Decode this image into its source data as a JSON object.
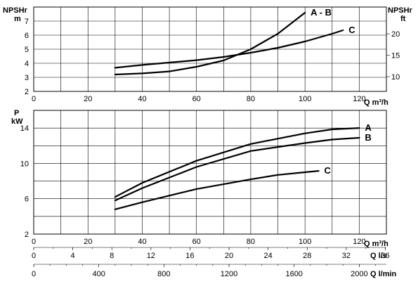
{
  "chart_data": [
    {
      "type": "line",
      "title": "",
      "ylabel_left": [
        "NPSHr",
        "m"
      ],
      "ylabel_right": [
        "NPSHr",
        "ft"
      ],
      "xlabel": "Q m³/h",
      "xlim": [
        0,
        130
      ],
      "ylim": [
        2,
        8
      ],
      "y_ticks_left": [
        2,
        3,
        4,
        5,
        6,
        7
      ],
      "y_ticks_right": [
        10,
        15,
        20
      ],
      "x_ticks": [
        0,
        20,
        40,
        60,
        80,
        100,
        120
      ],
      "grid": true,
      "series": [
        {
          "name": "A - B",
          "x": [
            30,
            40,
            50,
            60,
            70,
            75,
            80,
            90,
            100
          ],
          "y": [
            3.2,
            3.28,
            3.42,
            3.75,
            4.2,
            4.6,
            5.0,
            6.1,
            7.6
          ]
        },
        {
          "name": "C",
          "x": [
            30,
            40,
            50,
            60,
            70,
            80,
            90,
            100,
            110,
            114
          ],
          "y": [
            3.68,
            3.88,
            4.05,
            4.22,
            4.45,
            4.75,
            5.1,
            5.55,
            6.1,
            6.35
          ]
        }
      ]
    },
    {
      "type": "line",
      "title": "",
      "ylabel_left": [
        "P",
        "kW"
      ],
      "xlabel": "Q m³/h",
      "xlim": [
        0,
        130
      ],
      "ylim": [
        2,
        16
      ],
      "y_ticks_left": [
        2,
        6,
        10,
        14
      ],
      "x_ticks": [
        0,
        20,
        40,
        60,
        80,
        100,
        120
      ],
      "grid": true,
      "series": [
        {
          "name": "A",
          "x": [
            30,
            40,
            60,
            80,
            100,
            110,
            120
          ],
          "y": [
            6.2,
            7.8,
            10.3,
            12.2,
            13.4,
            13.85,
            14.0
          ]
        },
        {
          "name": "B",
          "x": [
            30,
            40,
            60,
            80,
            100,
            110,
            120
          ],
          "y": [
            5.8,
            7.2,
            9.6,
            11.4,
            12.3,
            12.7,
            12.9
          ]
        },
        {
          "name": "C",
          "x": [
            30,
            40,
            60,
            80,
            90,
            100,
            105
          ],
          "y": [
            4.8,
            5.6,
            7.1,
            8.2,
            8.7,
            9.0,
            9.15
          ]
        }
      ],
      "secondary_axes": [
        {
          "label": "Q l/s",
          "ticks": [
            0,
            4,
            8,
            12,
            16,
            20,
            24,
            28,
            32,
            36
          ]
        },
        {
          "label": "Q l/min",
          "ticks": [
            0,
            400,
            800,
            1200,
            1600,
            2000
          ]
        }
      ]
    }
  ]
}
